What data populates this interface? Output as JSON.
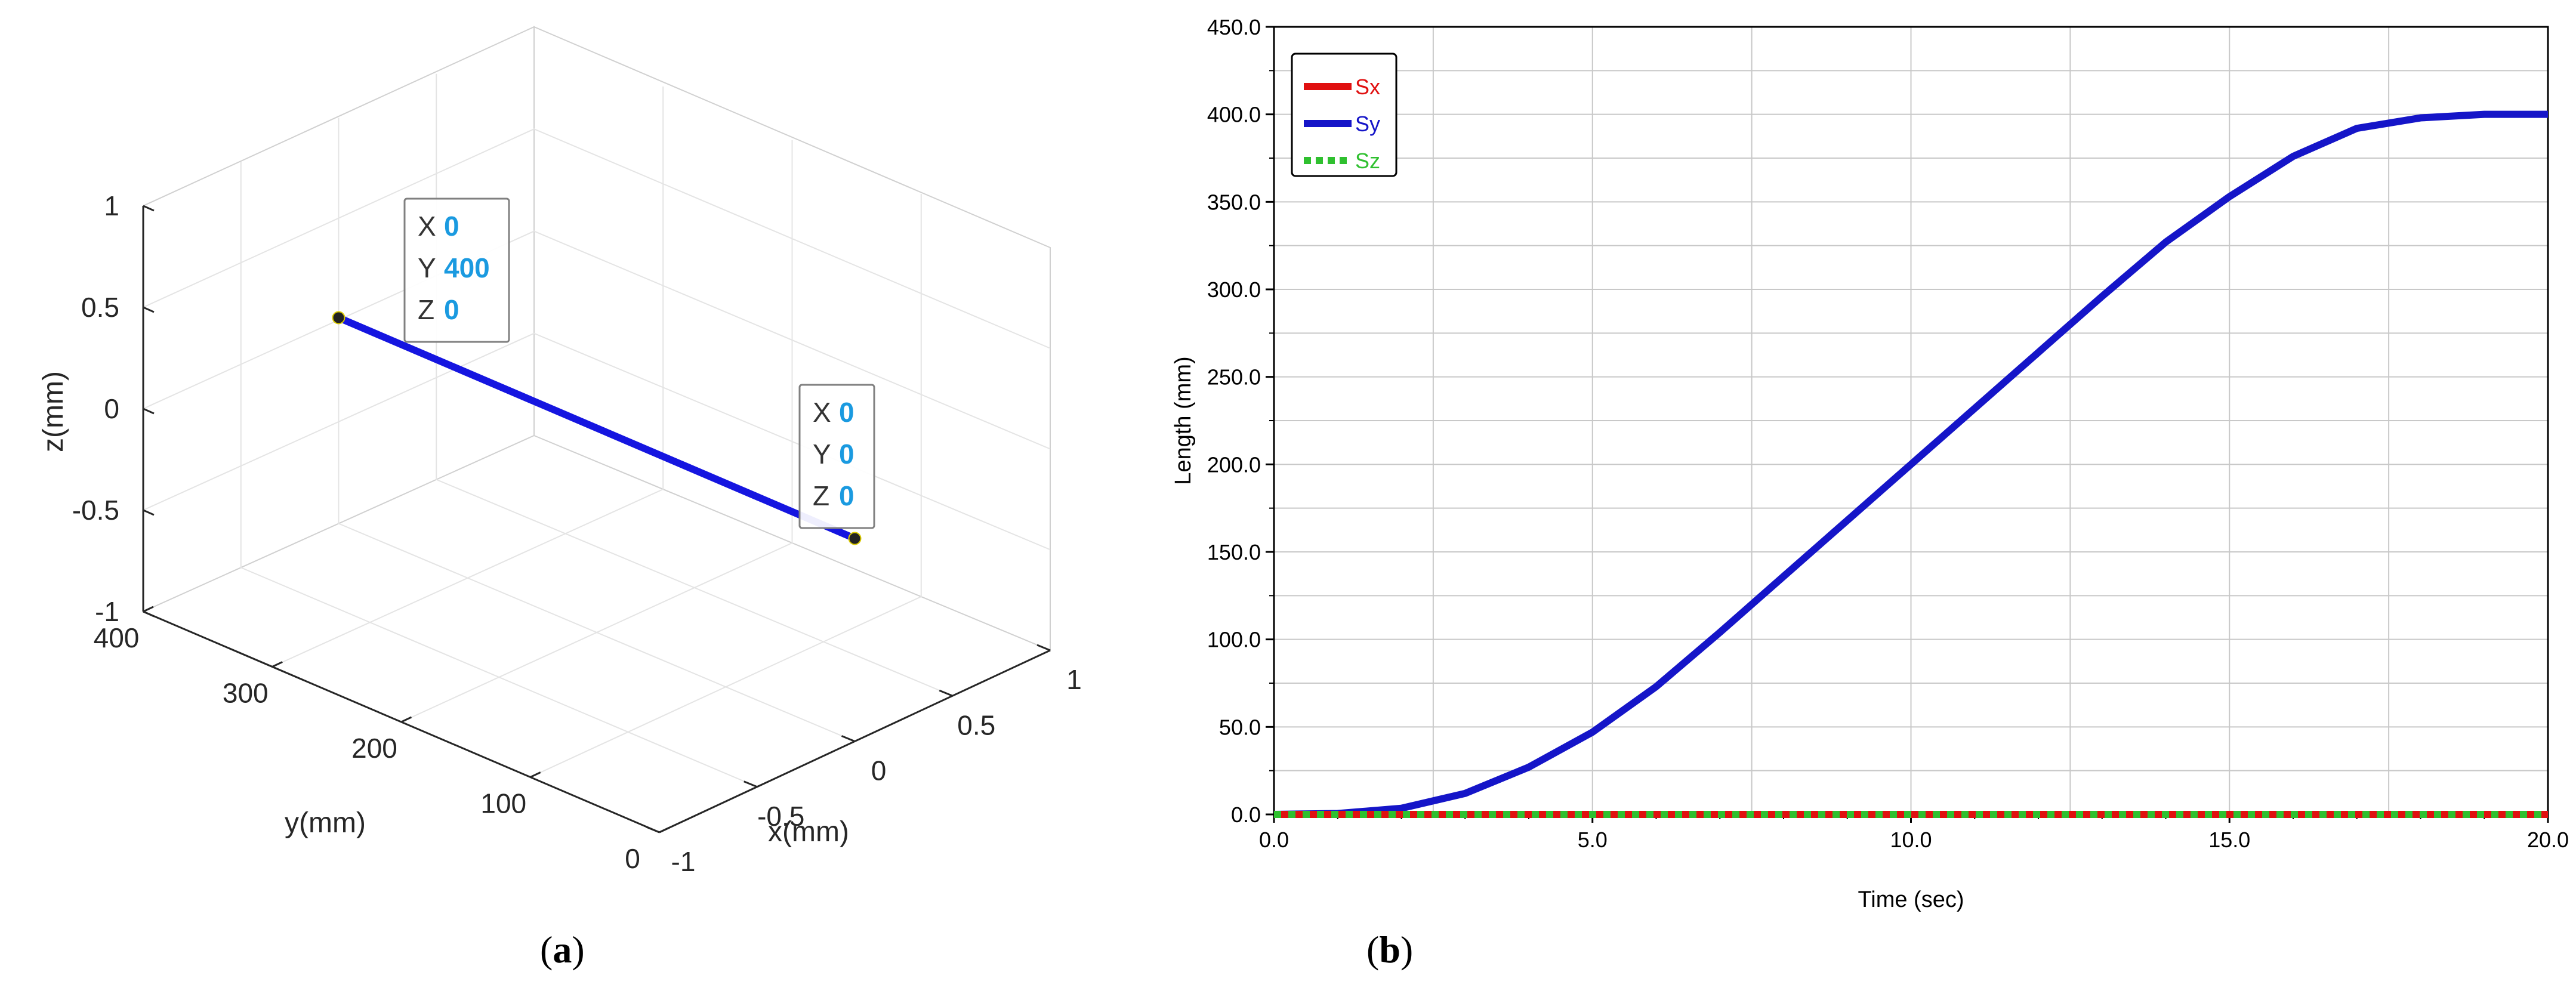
{
  "chart_data": [
    {
      "type": "line3d",
      "panel": "a",
      "xlabel": "x(mm)",
      "ylabel": "y(mm)",
      "zlabel": "z(mm)",
      "xlim": [
        -1,
        1
      ],
      "ylim": [
        0,
        400
      ],
      "zlim": [
        -1,
        1
      ],
      "x_ticks": [
        "-1",
        "-0.5",
        "0",
        "0.5",
        "1"
      ],
      "y_ticks": [
        "0",
        "100",
        "200",
        "300",
        "400"
      ],
      "z_ticks": [
        "-1",
        "-0.5",
        "0",
        "0.5",
        "1"
      ],
      "grid": true,
      "series": [
        {
          "color": "#1515e0",
          "points": [
            {
              "x": 0,
              "y": 400,
              "z": 0
            },
            {
              "x": 0,
              "y": 0,
              "z": 0
            }
          ]
        }
      ],
      "datatips": [
        {
          "x_label": "X",
          "x_value": "0",
          "y_label": "Y",
          "y_value": "400",
          "z_label": "Z",
          "z_value": "0"
        },
        {
          "x_label": "X",
          "x_value": "0",
          "y_label": "Y",
          "y_value": "0",
          "z_label": "Z",
          "z_value": "0"
        }
      ]
    },
    {
      "type": "line",
      "panel": "b",
      "xlabel": "Time (sec)",
      "ylabel": "Length (mm)",
      "xlim": [
        0,
        20
      ],
      "ylim": [
        0,
        450
      ],
      "x_ticks": [
        "0.0",
        "5.0",
        "10.0",
        "15.0",
        "20.0"
      ],
      "y_ticks": [
        "0.0",
        "50.0",
        "100.0",
        "150.0",
        "200.0",
        "250.0",
        "300.0",
        "350.0",
        "400.0",
        "450.0"
      ],
      "grid": true,
      "legend_position": "top-left",
      "series": [
        {
          "name": "Sx",
          "color": "#e01010",
          "style": "solid",
          "x": [
            0,
            20
          ],
          "y": [
            0,
            0
          ]
        },
        {
          "name": "Sy",
          "color": "#1515c8",
          "style": "solid",
          "x": [
            0,
            1,
            2,
            3,
            4,
            5,
            6,
            7,
            8,
            9,
            10,
            11,
            12,
            13,
            14,
            15,
            16,
            17,
            18,
            19,
            20
          ],
          "y": [
            0,
            0.5,
            3.5,
            12,
            27,
            47,
            73,
            104,
            136,
            168,
            200,
            232,
            264,
            296,
            327,
            353,
            376,
            392,
            398,
            400,
            400
          ]
        },
        {
          "name": "Sz",
          "color": "#2fc02f",
          "style": "dotted",
          "x": [
            0,
            20
          ],
          "y": [
            0,
            0
          ]
        }
      ]
    }
  ],
  "panel_labels": {
    "a": "a",
    "b": "b"
  }
}
